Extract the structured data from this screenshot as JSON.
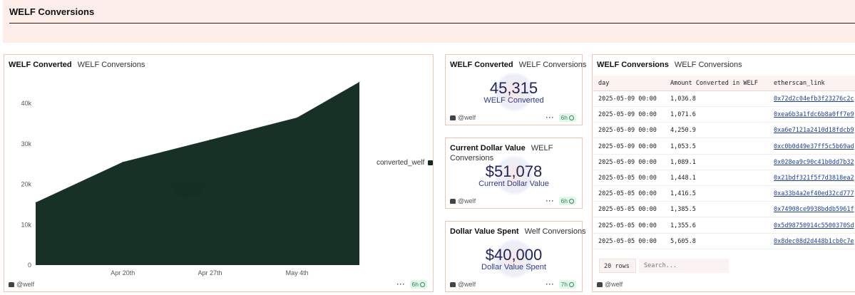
{
  "dashboard": {
    "title": "WELF Conversions"
  },
  "chart_panel": {
    "title": "WELF Converted",
    "subtitle": "WELF Conversions",
    "author": "@welf",
    "freshness": "6h",
    "chart_data": {
      "type": "area",
      "series": [
        {
          "name": "converted_welf",
          "color": "#0f2a1f"
        }
      ],
      "x": [
        "2025-04-13",
        "2025-04-20",
        "2025-04-27",
        "2025-05-04",
        "2025-05-09"
      ],
      "y": [
        15500,
        25500,
        31000,
        36500,
        45315
      ],
      "ylim": [
        0,
        45315
      ],
      "yticks": [
        "0",
        "10k",
        "20k",
        "30k",
        "40k"
      ],
      "ytick_values": [
        0,
        10000,
        20000,
        30000,
        40000
      ],
      "xticks": [
        "Apr 20th",
        "Apr 27th",
        "May 4th"
      ],
      "xtick_values": [
        "2025-04-20",
        "2025-04-27",
        "2025-05-04"
      ],
      "legend": "right",
      "grid": false
    }
  },
  "counters": [
    {
      "title": "WELF Converted",
      "subtitle": "WELF Conversions",
      "value": "45,315",
      "label": "WELF Converted",
      "author": "@welf",
      "freshness": "6h"
    },
    {
      "title": "Current Dollar Value",
      "subtitle": "WELF Conversions",
      "value": "$51,078",
      "label": "Current Dollar Value",
      "author": "@welf",
      "freshness": "6h"
    },
    {
      "title": "Dollar Value Spent",
      "subtitle": "Welf Conversions",
      "value": "$40,000",
      "label": "Dollar Value Spent",
      "author": "@welf",
      "freshness": "7h"
    }
  ],
  "table_panel": {
    "title": "WELF Conversions",
    "subtitle": "WELF Conversions",
    "columns": [
      "day",
      "Amount Converted in WELF",
      "etherscan_link"
    ],
    "rows": [
      [
        "2025-05-09 00:00",
        "1,036.8",
        "0x72d2c04efb3f23276c2c"
      ],
      [
        "2025-05-09 00:00",
        "1,071.6",
        "0xea6b3a1fdc6b8a0ff7e9"
      ],
      [
        "2025-05-09 00:00",
        "4,250.9",
        "0xa6e7121a2410d18fdcb9"
      ],
      [
        "2025-05-09 00:00",
        "1,053.5",
        "0xc0b0d49e37ff5c5b69ad"
      ],
      [
        "2025-05-09 00:00",
        "1,089.1",
        "0x028ea9c90c41b0dd7b32"
      ],
      [
        "2025-05-05 00:00",
        "1,448.1",
        "0x21bdf321f5f7d3818ea2"
      ],
      [
        "2025-05-05 00:00",
        "1,416.5",
        "0xa33b4a2ef40ed32cd777"
      ],
      [
        "2025-05-05 00:00",
        "1,385.5",
        "0x74908ce9938bddb5961f"
      ],
      [
        "2025-05-05 00:00",
        "1,355.6",
        "0x5d98750914c5500370Sd"
      ],
      [
        "2025-05-05 00:00",
        "5,605.8",
        "0x8dec08d2d448b1cb0c7e"
      ]
    ],
    "row_count": "20 rows",
    "search_placeholder": "Search...",
    "author": "@welf"
  }
}
